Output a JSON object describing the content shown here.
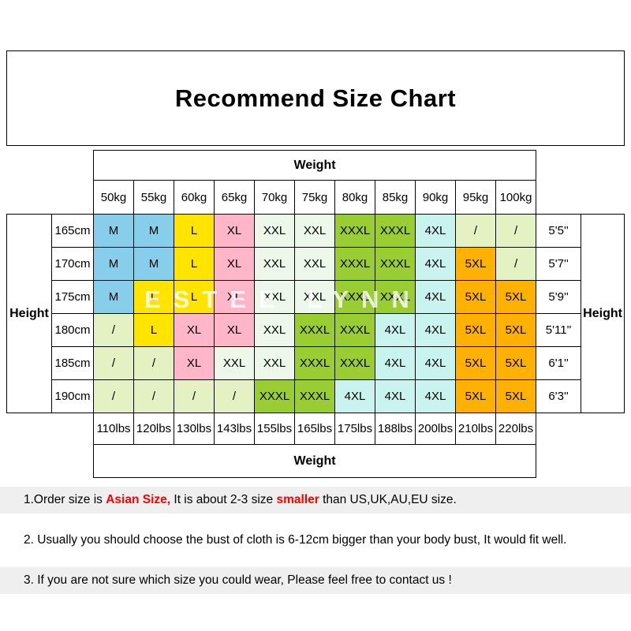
{
  "title": "Recommend Size Chart",
  "watermark": "ESTEE LYNN",
  "size_colors": {
    "blue": "#87CEEB",
    "yellow": "#FFE400",
    "pink": "#FFB6C9",
    "mint": "#EDF8EA",
    "green": "#9ACD32",
    "cyan": "#C8F3EF",
    "orange": "#FFB100",
    "palegreen": "#E3F1C3"
  },
  "chart_data": {
    "type": "table",
    "title": "Recommend Size Chart",
    "top_axis_label": "Weight",
    "bottom_axis_label": "Weight",
    "left_axis_label": "Height",
    "right_axis_label": "Height",
    "kg_columns": [
      "50kg",
      "55kg",
      "60kg",
      "65kg",
      "70kg",
      "75kg",
      "80kg",
      "85kg",
      "90kg",
      "95kg",
      "100kg"
    ],
    "lbs_columns": [
      "110lbs",
      "120lbs",
      "130lbs",
      "143lbs",
      "155lbs",
      "165lbs",
      "175lbs",
      "188lbs",
      "200lbs",
      "210lbs",
      "220lbs"
    ],
    "rows": [
      {
        "cm": "165cm",
        "ft": "5'5''",
        "cells": [
          [
            "M",
            "blue"
          ],
          [
            "M",
            "blue"
          ],
          [
            "L",
            "yellow"
          ],
          [
            "XL",
            "pink"
          ],
          [
            "XXL",
            "mint"
          ],
          [
            "XXL",
            "mint"
          ],
          [
            "XXXL",
            "green"
          ],
          [
            "XXXL",
            "green"
          ],
          [
            "4XL",
            "cyan"
          ],
          [
            "/",
            "palegreen"
          ],
          [
            "/",
            "palegreen"
          ]
        ]
      },
      {
        "cm": "170cm",
        "ft": "5'7''",
        "cells": [
          [
            "M",
            "blue"
          ],
          [
            "M",
            "blue"
          ],
          [
            "L",
            "yellow"
          ],
          [
            "XL",
            "pink"
          ],
          [
            "XXL",
            "mint"
          ],
          [
            "XXL",
            "mint"
          ],
          [
            "XXXL",
            "green"
          ],
          [
            "XXXL",
            "green"
          ],
          [
            "4XL",
            "cyan"
          ],
          [
            "5XL",
            "orange"
          ],
          [
            "/",
            "palegreen"
          ]
        ]
      },
      {
        "cm": "175cm",
        "ft": "5'9''",
        "cells": [
          [
            "M",
            "blue"
          ],
          [
            "L",
            "yellow"
          ],
          [
            "L",
            "yellow"
          ],
          [
            "XL",
            "pink"
          ],
          [
            "XXL",
            "mint"
          ],
          [
            "XXL",
            "mint"
          ],
          [
            "XXXL",
            "green"
          ],
          [
            "XXXL",
            "green"
          ],
          [
            "4XL",
            "cyan"
          ],
          [
            "5XL",
            "orange"
          ],
          [
            "5XL",
            "orange"
          ]
        ]
      },
      {
        "cm": "180cm",
        "ft": "5'11''",
        "cells": [
          [
            "/",
            "palegreen"
          ],
          [
            "L",
            "yellow"
          ],
          [
            "XL",
            "pink"
          ],
          [
            "XL",
            "pink"
          ],
          [
            "XXL",
            "mint"
          ],
          [
            "XXXL",
            "green"
          ],
          [
            "XXXL",
            "green"
          ],
          [
            "4XL",
            "cyan"
          ],
          [
            "4XL",
            "cyan"
          ],
          [
            "5XL",
            "orange"
          ],
          [
            "5XL",
            "orange"
          ]
        ]
      },
      {
        "cm": "185cm",
        "ft": "6'1''",
        "cells": [
          [
            "/",
            "palegreen"
          ],
          [
            "/",
            "palegreen"
          ],
          [
            "XL",
            "pink"
          ],
          [
            "XXL",
            "mint"
          ],
          [
            "XXL",
            "mint"
          ],
          [
            "XXXL",
            "green"
          ],
          [
            "XXXL",
            "green"
          ],
          [
            "4XL",
            "cyan"
          ],
          [
            "4XL",
            "cyan"
          ],
          [
            "5XL",
            "orange"
          ],
          [
            "5XL",
            "orange"
          ]
        ]
      },
      {
        "cm": "190cm",
        "ft": "6'3''",
        "cells": [
          [
            "/",
            "palegreen"
          ],
          [
            "/",
            "palegreen"
          ],
          [
            "/",
            "palegreen"
          ],
          [
            "/",
            "palegreen"
          ],
          [
            "XXXL",
            "green"
          ],
          [
            "XXXL",
            "green"
          ],
          [
            "4XL",
            "cyan"
          ],
          [
            "4XL",
            "cyan"
          ],
          [
            "4XL",
            "cyan"
          ],
          [
            "5XL",
            "orange"
          ],
          [
            "5XL",
            "orange"
          ]
        ]
      }
    ]
  },
  "notes": [
    {
      "segments": [
        {
          "text": "1.Order size is ",
          "red": false
        },
        {
          "text": "Asian Size,",
          "red": true
        },
        {
          "text": " It is about 2-3 size ",
          "red": false
        },
        {
          "text": "smaller",
          "red": true
        },
        {
          "text": " than US,UK,AU,EU size.",
          "red": false
        }
      ]
    },
    {
      "segments": [
        {
          "text": "2. Usually you should choose the bust of cloth is 6-12cm bigger than your body bust, It would fit well.",
          "red": false
        }
      ]
    },
    {
      "segments": [
        {
          "text": "3. If you are not sure which size you could wear, Please feel free to contact us !",
          "red": false
        }
      ]
    }
  ]
}
